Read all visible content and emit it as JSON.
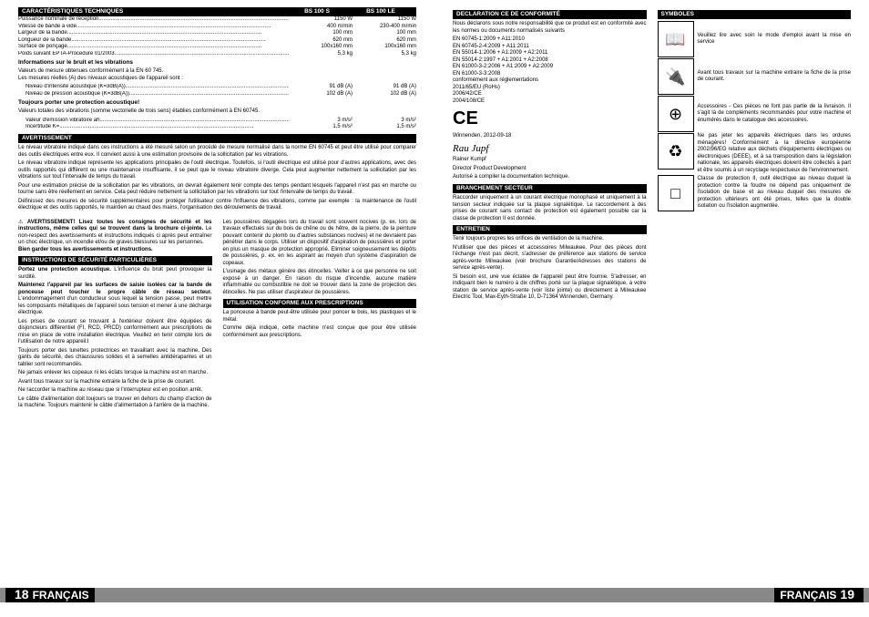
{
  "leftPage": {
    "specHeader": {
      "title": "CARACTÉRISTIQUES TECHNIQUES",
      "col1": "BS 100 S",
      "col2": "BS 100 LE"
    },
    "specRows": [
      {
        "label": "Puissance nominale de réception",
        "v1": "1150 W",
        "v2": "1150 W"
      },
      {
        "label": "Vitesse de bande à vide",
        "v1": "400 m/min",
        "v2": "230-400 m/min"
      },
      {
        "label": "Largeur de la bande",
        "v1": "100 mm",
        "v2": "100 mm"
      },
      {
        "label": "Longueur de la bande",
        "v1": "620 mm",
        "v2": "620 mm"
      },
      {
        "label": "Surface de ponçage",
        "v1": "100x160 mm",
        "v2": "100x160 mm"
      },
      {
        "label": "Poids suivant EPTA-Procedure 01/2003",
        "v1": "5,3 kg",
        "v2": "5,3 kg"
      }
    ],
    "noiseHeader": "Informations sur le bruit et les vibrations",
    "noiseIntro": "Valeurs de mesure obtenues conformément à la EN 60 745.\nLes mesures réelles (A) des niveaux acoustiques de l'appareil sont :",
    "noiseRows": [
      {
        "label": "Niveau d'intensité acoustique (K=3dB(A))",
        "v1": "91 dB (A)",
        "v2": "91 dB (A)"
      },
      {
        "label": "Niveau de pression acoustique (K=3dB(A))",
        "v1": "102 dB (A)",
        "v2": "102 dB (A)"
      }
    ],
    "protectHeader": "Toujours porter une protection acoustique!",
    "vibIntro": "Valeurs totales des vibrations (somme vectorielle de trois sens) établies conformément à EN 60745.",
    "vibRows": [
      {
        "label": "Valeur d'émission vibratoire ah",
        "v1": "3 m/s²",
        "v2": "3 m/s²"
      },
      {
        "label": "Incertitude K=",
        "v1": "1,5 m/s²",
        "v2": "1,5 m/s²"
      }
    ],
    "avertHeader": "AVERTISSEMENT",
    "avertP1": "Le niveau vibratoire indiqué dans ces instructions a été mesuré selon un procédé de mesure normalisé dans la norme EN 60745 et peut être utilisé pour comparer des outils électriques entre eux. Il convient aussi à une estimation provisoire de la sollicitation par les vibrations.",
    "avertP2": "Le niveau vibratoire indiqué représente les applications principales de l'outil électrique. Toutefois, si l'outil électrique est utilisé pour d'autres applications, avec des outils rapportés qui diffèrent ou une maintenance insuffisante, il se peut que le niveau vibratoire diverge. Cela peut augmenter nettement la sollicitation par les vibrations sur tout l'intervalle de temps du travail.",
    "avertP3": "Pour une estimation précise de la sollicitation par les vibrations, on devrait également tenir compte des temps pendant lesquels l'appareil n'est pas en marche ou tourne sans être réellement en service. Cela peut réduire nettement la sollicitation par les vibrations sur tout l'intervalle de temps du travail.",
    "avertP4": "Définissez des mesures de sécurité supplémentaires pour protéger l'utilisateur contre l'influence des vibrations, comme par exemple : la maintenance de l'outil électrique et des outils rapportés, le maintien au chaud des mains, l'organisation des déroulements de travail.",
    "warningBox": "AVERTISSEMENT! Lisez toutes les consignes de sécurité et les instructions, même celles qui se trouvent dans la brochure ci-jointe.",
    "warningBoxCont": " Le non-respect des avertissements et instructions indiqués ci après peut entraîner un choc électrique, un incendie et/ou de graves blessures sur les personnes.",
    "warningBoxEnd": "Bien garder tous les avertissements et instructions.",
    "secHeader": "INSTRUCTIONS DE SÉCURITÉ PARTICULIÈRES",
    "secP1a": "Portez une protection acoustique.",
    "secP1b": " L'influence du bruit peut provoquer la surdité.",
    "secP2a": "Maintenez l'appareil par les surfaces de saisie isolées car la bande de ponceuse peut toucher le propre câble de réseau secteur.",
    "secP2b": " L'endommagement d'un conducteur sous lequel la tension passe, peut mettre les composants métalliques de l'appareil sous tension et mener à une décharge électrique.",
    "secP3": "Les prises de courant se trouvant à l'extérieur doivent être équipées de disjoncteurs différentiel (FI, RCD, PRCD) conformément aux prescriptions de mise en place de votre installation électrique. Veuillez en tenir compte lors de l'utilisation de notre appareil.I",
    "secP4": "Toujours porter des lunettes protectrices en travaillant avec la machine. Des gants de sécurité, des chaussures solides et à semelles antidérapantes et un tablier sont recommandés.",
    "secP5": "Ne jamais enlever les copeaux ni les éclats lorsque la machine est en marche.",
    "secP6": "Avant tous travaux sur la machine extraire la fiche de la prise de courant.",
    "secP7": "Ne raccorder la machine au réseau que si l'interrupteur est en position arrêt.",
    "secP8": "Le câble d'alimentation doit toujours se trouver en dehors du champ d'action de la machine. Toujours maintenir le câble d'alimentation à l'arrière de la machine.",
    "col2P1": "Les poussières dégagées lors du travail sont souvent nocives (p. ex. lors de travaux effectués sur du bois de chêne ou de hêtre, de la pierre, de la peinture pouvant contenir du plomb ou d'autres substances nocives) et ne devraient pas pénétrer dans le corps. Utiliser un dispositif d'aspiration de poussières et porter en plus un masque de protection approprié. Eliminer soigneusement les dépôts de poussières, p. ex. en les aspirant au moyen d'un système d'aspiration de copeaux.",
    "col2P2": "L'usinage des métaux génère des étincelles. Veiller à ce que personne ne soit exposé à un danger. En raison du risque d'incendie, aucune matière inflammable ou combustible ne doit se trouver dans la zone de projection des étincelles. Ne pas utiliser d'aspirateur de poussières.",
    "utilHeader": "UTILISATION CONFORME AUX PRESCRIPTIONS",
    "utilP1": "La ponceuse à bande peut-être utilisée pour poncer le bois, les plastiques et le métal.",
    "utilP2": "Comme déjà indiqué, cette machine n'est conçue que pour être utilisée conformément aux prescriptions.",
    "footerNum": "18",
    "footerLang": "FRANÇAIS"
  },
  "rightPage": {
    "declHeader": "DECLARATION CE DE CONFORMITÉ",
    "declIntro": "Nous déclarons sous notre responsabilité que ce produit est en conformité avec les normes ou documents normalisés suivants",
    "declNorms": [
      "EN 60745-1:2009 + A11:2010",
      "EN 60745-2-4:2009 + A11:2011",
      "EN 55014-1:2006 + A1:2009 + A2:2011",
      "EN 55014-2:1997 + A1:2001 + A2:2008",
      "EN 61000-3-2:2006 + A1:2009 + A2:2009",
      "EN 61000-3-3:2008",
      "conformément aux réglementations",
      "2011/65/EU (RoHs)",
      "2006/42/CE",
      "2004/108/CE"
    ],
    "ceMark": "CE",
    "declDate": "Winnenden, 2012-09-18",
    "sigName": "Rainer Kumpf",
    "sigTitle": "Director Product Development",
    "sigAuth": "Autorisé à compiler la documentation technique.",
    "branchHeader": "BRANCHEMENT SECTEUR",
    "branchP1": "Raccorder uniquement à un courant électrique monophasé et uniquement à la tension secteur indiquée sur la plaque signalétique. Le raccordement à des prises de courant sans contact de protection est également possible car la classe de protection II est donnée.",
    "entretienHeader": "ENTRETIEN",
    "entP1": "Tenir toujours propres les orifices de ventilation de la machine.",
    "entP2": "N'utiliser que des pièces et accessoires Milwaukee. Pour des pièces dont l'échange n'est pas décrit, s'adresser de préférence aux stations de service après-vente Milwaukee (voir brochure Garantie/Adresses des stations de service après-vente).",
    "entP3": "Si besoin est, une vue éclatée de l'appareil peut être fournie. S'adresser, en indiquant bien le numéro à dix chiffres porté sur la plaque signalétique, à votre station de service après-vente (voir liste jointe) ou directement à Milwaukee Electric Tool, Max-Eyth-Straße 10, D-71364 Winnenden, Germany.",
    "symHeader": "SYMBOLES",
    "symbols": [
      {
        "icon": "📖",
        "text": "Veuillez lire avec soin le mode d'emploi avant la mise en service"
      },
      {
        "icon": "🔌",
        "text": "Avant tous travaux sur la machine extraire la fiche de la prise de courant."
      },
      {
        "icon": "⊕",
        "text": "Accessoires - Ces pièces ne font pas partie de la livraison. Il s'agit là de compléments recommandés pour votre machine et énumérés dans le catalogue des accessoires."
      },
      {
        "icon": "♻",
        "text": "Ne pas jeter les appareils électriques dans les ordures ménagères! Conformément à la directive européenne 2002/96/EG relative aux déchets d'équipements électriques ou électroniques (DEEE), et à sa transposition dans la législation nationale, les appareils électriques doivent être collectés à part et être soumis à un recyclage respectueux de l'environnement."
      },
      {
        "icon": "□",
        "text": "Classe de protection II, outil électrique au niveau duquel la protection contre la foudre ne dépend pas uniquement de l'isolation de base et au niveau duquel des mesures de protection ultérieurs ont été prises, telles que la double isolation ou l'isolation augmentée."
      }
    ],
    "footerLang": "FRANÇAIS",
    "footerNum": "19"
  }
}
